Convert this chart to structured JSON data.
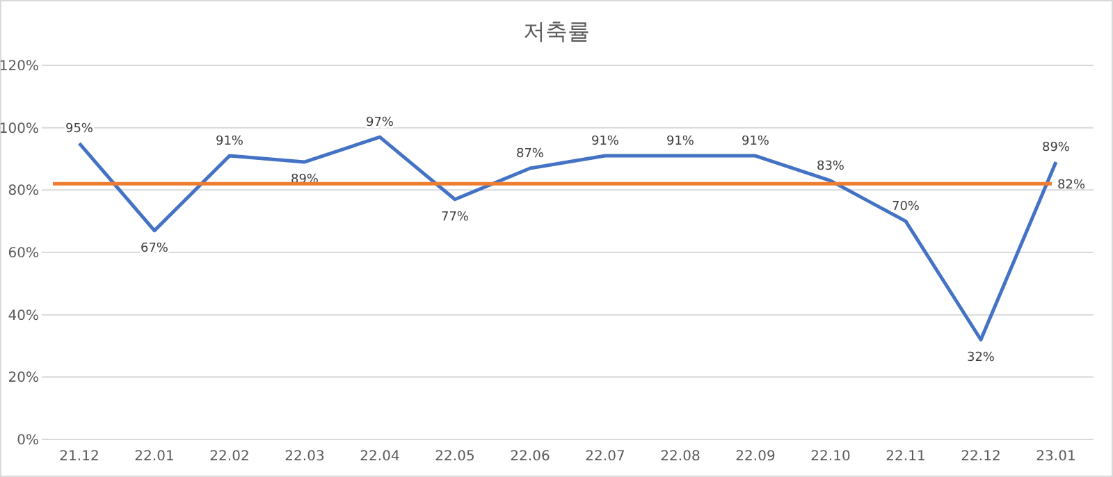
{
  "chart_data": {
    "type": "line",
    "title": "저축률",
    "categories": [
      "21.12",
      "22.01",
      "22.02",
      "22.03",
      "22.04",
      "22.05",
      "22.06",
      "22.07",
      "22.08",
      "22.09",
      "22.10",
      "22.11",
      "22.12",
      "23.01"
    ],
    "series": [
      {
        "color": "#4472c4",
        "values": [
          95,
          67,
          91,
          89,
          97,
          77,
          87,
          91,
          91,
          91,
          83,
          70,
          32,
          89
        ],
        "value_labels": [
          "95%",
          "67%",
          "91%",
          "89%",
          "97%",
          "77%",
          "87%",
          "91%",
          "91%",
          "91%",
          "83%",
          "70%",
          "32%",
          "89%"
        ]
      }
    ],
    "ylim": [
      0,
      120
    ],
    "yticks": [
      {
        "value": 0,
        "label": "0%"
      },
      {
        "value": 20,
        "label": "20%"
      },
      {
        "value": 40,
        "label": "40%"
      },
      {
        "value": 60,
        "label": "60%"
      },
      {
        "value": 80,
        "label": "80%"
      },
      {
        "value": 100,
        "label": "100%"
      },
      {
        "value": 120,
        "label": "120%"
      }
    ],
    "ref_lines": [
      {
        "axis": "y",
        "value": 82,
        "label": "82%",
        "color": "#ed7d31"
      }
    ],
    "grid": "y",
    "marker": "none",
    "line_style": "solid"
  }
}
